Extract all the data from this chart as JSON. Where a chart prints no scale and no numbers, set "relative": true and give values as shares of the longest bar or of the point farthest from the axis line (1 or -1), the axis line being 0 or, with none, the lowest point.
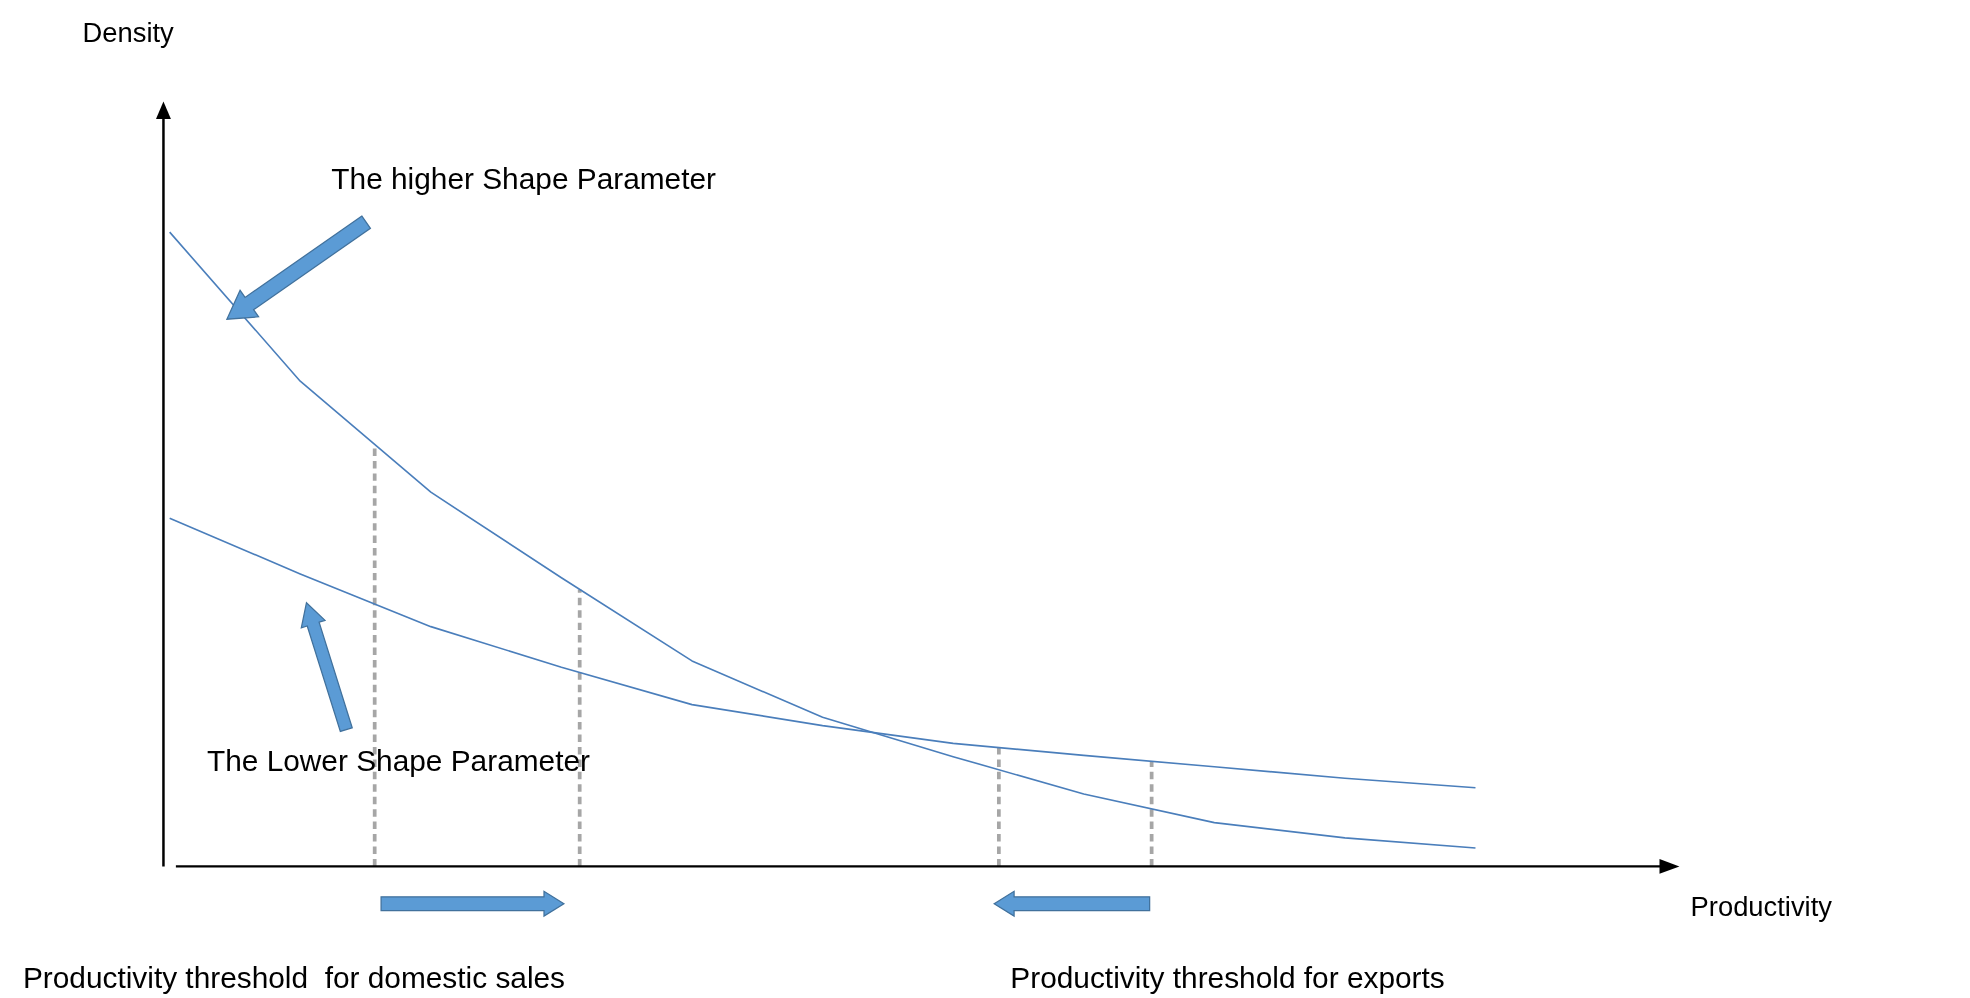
{
  "chart_data": {
    "type": "line",
    "relative": true,
    "marker": "none",
    "line_style": "solid",
    "categories": [
      null,
      null,
      null,
      null,
      null,
      null,
      null,
      null,
      null,
      null,
      null
    ],
    "series": [
      {
        "color": "#4a7ebb",
        "values": [
          1,
          0.765,
          0.59,
          0.455,
          0.324,
          0.235,
          0.173,
          0.114,
          0.069,
          0.045,
          0.029
        ]
      },
      {
        "color": "#4a7ebb",
        "values": [
          0.549,
          0.461,
          0.378,
          0.314,
          0.255,
          0.222,
          0.194,
          0.175,
          0.157,
          0.139,
          0.124
        ]
      }
    ],
    "annotations": [
      "The higher Shape Parameter",
      "The Lower Shape Parameter",
      "Productivity threshold  for domestic sales",
      "Productivity threshold for exports",
      "Density",
      "Productivity"
    ]
  }
}
